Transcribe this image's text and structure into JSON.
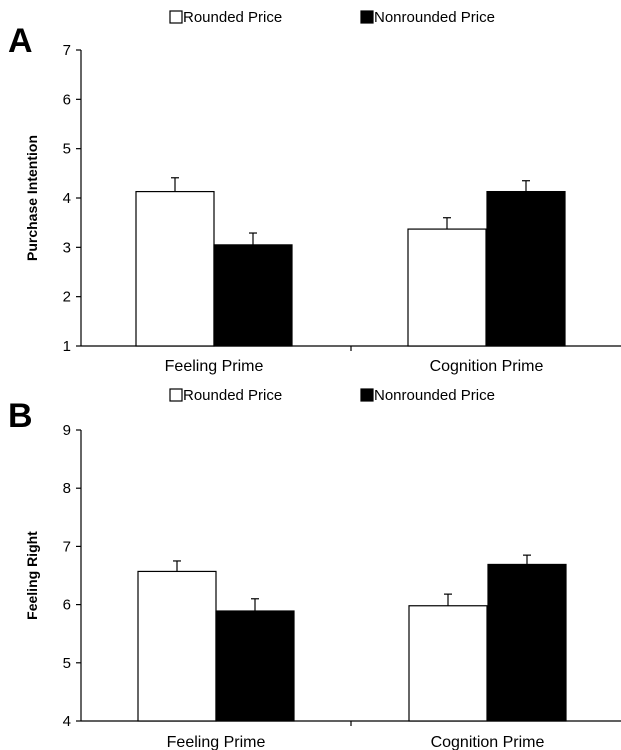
{
  "colors": {
    "rounded": "#ffffff",
    "nonrounded": "#000000",
    "axis": "#000000"
  },
  "chart_data": [
    {
      "panel_label": "A",
      "type": "bar",
      "categories": [
        "Feeling Prime",
        "Cognition Prime"
      ],
      "series": [
        {
          "name": "Rounded Price",
          "color": "#ffffff",
          "values": [
            4.13,
            3.37
          ],
          "errors": [
            0.28,
            0.23
          ]
        },
        {
          "name": "Nonrounded Price",
          "color": "#000000",
          "values": [
            3.05,
            4.13
          ],
          "errors": [
            0.24,
            0.22
          ]
        }
      ],
      "ylabel": "Purchase Intention",
      "ylim": [
        1,
        7
      ],
      "yticks": [
        1,
        2,
        3,
        4,
        5,
        6,
        7
      ],
      "grid": false,
      "legend": "top-center"
    },
    {
      "panel_label": "B",
      "type": "bar",
      "categories": [
        "Feeling Prime",
        "Cognition Prime"
      ],
      "series": [
        {
          "name": "Rounded Price",
          "color": "#ffffff",
          "values": [
            6.57,
            5.98
          ],
          "errors": [
            0.18,
            0.2
          ]
        },
        {
          "name": "Nonrounded Price",
          "color": "#000000",
          "values": [
            5.89,
            6.69
          ],
          "errors": [
            0.21,
            0.16
          ]
        }
      ],
      "ylabel": "Feeling Right",
      "ylim": [
        4,
        9
      ],
      "yticks": [
        4,
        5,
        6,
        7,
        8,
        9
      ],
      "grid": false,
      "legend": "top-center"
    }
  ]
}
